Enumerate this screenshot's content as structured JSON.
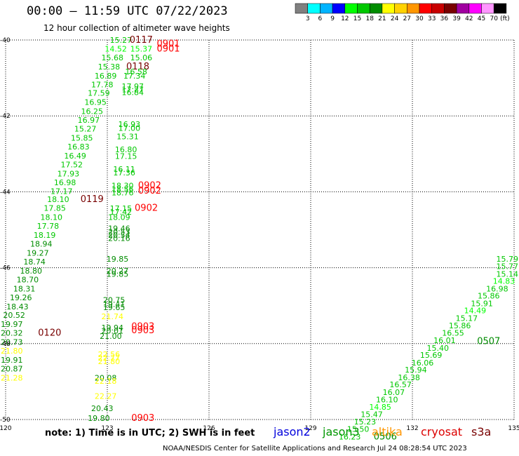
{
  "header": {
    "title": "00:00 – 11:59 UTC 07/22/2023",
    "subtitle": "12 hour collection of altimeter wave heights"
  },
  "colorbar": {
    "unit": "(ft)",
    "bins": [
      {
        "color": "#808080",
        "label": "3"
      },
      {
        "color": "#00ffff",
        "label": "6"
      },
      {
        "color": "#00b4ff",
        "label": "9"
      },
      {
        "color": "#0000ff",
        "label": "12"
      },
      {
        "color": "#00ff00",
        "label": "15"
      },
      {
        "color": "#00c800",
        "label": "18"
      },
      {
        "color": "#008c00",
        "label": "21"
      },
      {
        "color": "#ffff00",
        "label": "24"
      },
      {
        "color": "#ffd200",
        "label": "27"
      },
      {
        "color": "#ff9600",
        "label": "30"
      },
      {
        "color": "#ff0000",
        "label": "33"
      },
      {
        "color": "#c80000",
        "label": "36"
      },
      {
        "color": "#780000",
        "label": "39"
      },
      {
        "color": "#a000a0",
        "label": "42"
      },
      {
        "color": "#ff00ff",
        "label": "45"
      },
      {
        "color": "#ff96ff",
        "label": "70"
      },
      {
        "color": "#000000",
        "label": ""
      }
    ]
  },
  "axes": {
    "lon_ticks": [
      "120",
      "123",
      "126",
      "129",
      "132",
      "135"
    ],
    "lat_ticks": [
      "-40",
      "-42",
      "-44",
      "-46",
      "-48",
      "-50"
    ]
  },
  "note": "note: 1) Time is in UTC; 2) SWH is in feet",
  "legend": [
    {
      "name": "jason2",
      "color": "#0000dc"
    },
    {
      "name": "jason3",
      "color": "#009600"
    },
    {
      "name": "altika",
      "color": "#ff9600"
    },
    {
      "name": "cryosat",
      "color": "#dc0000"
    },
    {
      "name": "s3a",
      "color": "#780000"
    }
  ],
  "footer": "NOAA/NESDIS Center for Satellite Applications and Research    Jul 24 08:28:54 UTC 2023",
  "map": {
    "lon_range": [
      120,
      135
    ],
    "lat_range": [
      -50,
      -40
    ],
    "observations": [
      {
        "lon": 123.4,
        "lat": -40.0,
        "text": "15.27",
        "color": "#00c800"
      },
      {
        "lon": 124.0,
        "lat": -40.0,
        "text": "0117",
        "color": "#780000"
      },
      {
        "lon": 123.25,
        "lat": -40.23,
        "text": "14.52",
        "color": "#00ff00"
      },
      {
        "lon": 124.0,
        "lat": -40.23,
        "text": "15.37",
        "color": "#00ff00"
      },
      {
        "lon": 124.8,
        "lat": -40.1,
        "text": "0901",
        "color": "#ff0000"
      },
      {
        "lon": 124.8,
        "lat": -40.23,
        "text": "0901",
        "color": "#ff0000"
      },
      {
        "lon": 123.15,
        "lat": -40.46,
        "text": "15.68",
        "color": "#00c800"
      },
      {
        "lon": 124.0,
        "lat": -40.46,
        "text": "15.06",
        "color": "#00c800"
      },
      {
        "lon": 123.05,
        "lat": -40.7,
        "text": "15.38",
        "color": "#00c800"
      },
      {
        "lon": 123.9,
        "lat": -40.7,
        "text": "0118",
        "color": "#780000"
      },
      {
        "lon": 123.85,
        "lat": -40.83,
        "text": "16.58",
        "color": "#00c800"
      },
      {
        "lon": 122.95,
        "lat": -40.94,
        "text": "16.89",
        "color": "#00c800"
      },
      {
        "lon": 123.8,
        "lat": -40.94,
        "text": "17.34",
        "color": "#00c800"
      },
      {
        "lon": 122.85,
        "lat": -41.17,
        "text": "17.78",
        "color": "#00c800"
      },
      {
        "lon": 123.75,
        "lat": -41.22,
        "text": "17.97",
        "color": "#00c800"
      },
      {
        "lon": 123.75,
        "lat": -41.3,
        "text": "17.27",
        "color": "#00c800"
      },
      {
        "lon": 123.75,
        "lat": -41.38,
        "text": "16.84",
        "color": "#00c800"
      },
      {
        "lon": 122.75,
        "lat": -41.4,
        "text": "17.59",
        "color": "#00c800"
      },
      {
        "lon": 122.65,
        "lat": -41.64,
        "text": "16.95",
        "color": "#00c800"
      },
      {
        "lon": 122.55,
        "lat": -41.88,
        "text": "16.25",
        "color": "#00c800"
      },
      {
        "lon": 122.45,
        "lat": -42.11,
        "text": "16.97",
        "color": "#00c800"
      },
      {
        "lon": 123.65,
        "lat": -42.22,
        "text": "16.93",
        "color": "#00c800"
      },
      {
        "lon": 122.35,
        "lat": -42.34,
        "text": "15.27",
        "color": "#00c800"
      },
      {
        "lon": 123.65,
        "lat": -42.32,
        "text": "17.00",
        "color": "#00c800"
      },
      {
        "lon": 123.6,
        "lat": -42.54,
        "text": "15.31",
        "color": "#00c800"
      },
      {
        "lon": 122.25,
        "lat": -42.58,
        "text": "15.85",
        "color": "#00c800"
      },
      {
        "lon": 122.15,
        "lat": -42.81,
        "text": "16.83",
        "color": "#00c800"
      },
      {
        "lon": 123.55,
        "lat": -42.88,
        "text": "16.80",
        "color": "#00c800"
      },
      {
        "lon": 122.05,
        "lat": -43.05,
        "text": "16.49",
        "color": "#00c800"
      },
      {
        "lon": 123.55,
        "lat": -43.06,
        "text": "17.15",
        "color": "#00c800"
      },
      {
        "lon": 121.95,
        "lat": -43.28,
        "text": "17.52",
        "color": "#00c800"
      },
      {
        "lon": 123.5,
        "lat": -43.4,
        "text": "16.11",
        "color": "#00c800"
      },
      {
        "lon": 123.5,
        "lat": -43.49,
        "text": "17.36",
        "color": "#00c800"
      },
      {
        "lon": 121.85,
        "lat": -43.52,
        "text": "17.93",
        "color": "#00c800"
      },
      {
        "lon": 121.75,
        "lat": -43.75,
        "text": "16.98",
        "color": "#00c800"
      },
      {
        "lon": 123.45,
        "lat": -43.84,
        "text": "18.30",
        "color": "#00c800"
      },
      {
        "lon": 124.25,
        "lat": -43.84,
        "text": "0902",
        "color": "#ff0000"
      },
      {
        "lon": 123.45,
        "lat": -43.93,
        "text": "18.56",
        "color": "#00c800"
      },
      {
        "lon": 124.25,
        "lat": -43.97,
        "text": "0902",
        "color": "#ff0000"
      },
      {
        "lon": 121.65,
        "lat": -43.98,
        "text": "17.17",
        "color": "#00c800"
      },
      {
        "lon": 123.45,
        "lat": -44.02,
        "text": "18.76",
        "color": "#00c800"
      },
      {
        "lon": 121.55,
        "lat": -44.2,
        "text": "18.10",
        "color": "#00c800"
      },
      {
        "lon": 122.55,
        "lat": -44.2,
        "text": "0119",
        "color": "#780000"
      },
      {
        "lon": 121.45,
        "lat": -44.43,
        "text": "17.85",
        "color": "#00c800"
      },
      {
        "lon": 123.4,
        "lat": -44.44,
        "text": "17.15",
        "color": "#00c800"
      },
      {
        "lon": 124.15,
        "lat": -44.43,
        "text": "0902",
        "color": "#ff0000"
      },
      {
        "lon": 123.4,
        "lat": -44.53,
        "text": "17.42",
        "color": "#00c800"
      },
      {
        "lon": 121.35,
        "lat": -44.67,
        "text": "18.10",
        "color": "#00c800"
      },
      {
        "lon": 123.35,
        "lat": -44.67,
        "text": "18.09",
        "color": "#00c800"
      },
      {
        "lon": 121.25,
        "lat": -44.9,
        "text": "17.78",
        "color": "#00c800"
      },
      {
        "lon": 123.35,
        "lat": -44.96,
        "text": "19.46",
        "color": "#008c00"
      },
      {
        "lon": 123.35,
        "lat": -45.06,
        "text": "20.53",
        "color": "#008c00"
      },
      {
        "lon": 121.15,
        "lat": -45.14,
        "text": "18.19",
        "color": "#00c800"
      },
      {
        "lon": 123.35,
        "lat": -45.14,
        "text": "20.54",
        "color": "#008c00"
      },
      {
        "lon": 123.35,
        "lat": -45.22,
        "text": "20.16",
        "color": "#008c00"
      },
      {
        "lon": 121.05,
        "lat": -45.37,
        "text": "18.94",
        "color": "#008c00"
      },
      {
        "lon": 120.95,
        "lat": -45.61,
        "text": "19.27",
        "color": "#008c00"
      },
      {
        "lon": 123.3,
        "lat": -45.77,
        "text": "19.85",
        "color": "#008c00"
      },
      {
        "lon": 120.85,
        "lat": -45.84,
        "text": "18.74",
        "color": "#008c00"
      },
      {
        "lon": 123.3,
        "lat": -46.08,
        "text": "20.27",
        "color": "#008c00"
      },
      {
        "lon": 120.75,
        "lat": -46.08,
        "text": "18.80",
        "color": "#008c00"
      },
      {
        "lon": 123.3,
        "lat": -46.16,
        "text": "19.85",
        "color": "#008c00"
      },
      {
        "lon": 120.65,
        "lat": -46.31,
        "text": "18.70",
        "color": "#008c00"
      },
      {
        "lon": 120.55,
        "lat": -46.55,
        "text": "18.31",
        "color": "#008c00"
      },
      {
        "lon": 120.45,
        "lat": -46.78,
        "text": "19.26",
        "color": "#008c00"
      },
      {
        "lon": 123.2,
        "lat": -46.85,
        "text": "20.75",
        "color": "#008c00"
      },
      {
        "lon": 123.2,
        "lat": -46.96,
        "text": "19.41",
        "color": "#008c00"
      },
      {
        "lon": 123.2,
        "lat": -47.04,
        "text": "19.65",
        "color": "#008c00"
      },
      {
        "lon": 120.35,
        "lat": -47.02,
        "text": "18.43",
        "color": "#008c00"
      },
      {
        "lon": 123.15,
        "lat": -47.28,
        "text": "21.74",
        "color": "#ffff00"
      },
      {
        "lon": 120.25,
        "lat": -47.25,
        "text": "20.52",
        "color": "#008c00"
      },
      {
        "lon": 120.15,
        "lat": -47.49,
        "text": "19.97",
        "color": "#008c00"
      },
      {
        "lon": 123.15,
        "lat": -47.58,
        "text": "19.94",
        "color": "#008c00"
      },
      {
        "lon": 124.05,
        "lat": -47.55,
        "text": "0903",
        "color": "#ff0000"
      },
      {
        "lon": 123.15,
        "lat": -47.66,
        "text": "20.01",
        "color": "#008c00"
      },
      {
        "lon": 124.05,
        "lat": -47.65,
        "text": "0903",
        "color": "#ff0000"
      },
      {
        "lon": 120.05,
        "lat": -47.72,
        "text": "20.32",
        "color": "#008c00"
      },
      {
        "lon": 121.3,
        "lat": -47.72,
        "text": "0120",
        "color": "#780000"
      },
      {
        "lon": 123.1,
        "lat": -47.8,
        "text": "21.00",
        "color": "#008c00"
      },
      {
        "lon": 119.95,
        "lat": -47.96,
        "text": "20.73",
        "color": "#008c00"
      },
      {
        "lon": 119.85,
        "lat": -48.19,
        "text": "21.80",
        "color": "#ffff00"
      },
      {
        "lon": 123.05,
        "lat": -48.28,
        "text": "22.56",
        "color": "#ffff00"
      },
      {
        "lon": 123.05,
        "lat": -48.37,
        "text": "22.77",
        "color": "#ffff00"
      },
      {
        "lon": 119.75,
        "lat": -48.43,
        "text": "19.91",
        "color": "#008c00"
      },
      {
        "lon": 123.05,
        "lat": -48.47,
        "text": "21.80",
        "color": "#ffff00"
      },
      {
        "lon": 119.65,
        "lat": -48.66,
        "text": "20.87",
        "color": "#008c00"
      },
      {
        "lon": 119.55,
        "lat": -48.9,
        "text": "21.28",
        "color": "#ffff00"
      },
      {
        "lon": 122.95,
        "lat": -48.9,
        "text": "20.08",
        "color": "#008c00"
      },
      {
        "lon": 122.95,
        "lat": -48.98,
        "text": "22.18",
        "color": "#ffff00"
      },
      {
        "lon": 122.95,
        "lat": -49.38,
        "text": "22.27",
        "color": "#ffff00"
      },
      {
        "lon": 122.85,
        "lat": -49.7,
        "text": "20.43",
        "color": "#008c00"
      },
      {
        "lon": 122.75,
        "lat": -49.96,
        "text": "19.80",
        "color": "#008c00"
      },
      {
        "lon": 124.05,
        "lat": -49.96,
        "text": "0903",
        "color": "#ff0000"
      },
      {
        "lon": 135.0,
        "lat": -45.77,
        "text": "15.79",
        "color": "#00c800"
      },
      {
        "lon": 134.9,
        "lat": -45.96,
        "text": "15.77",
        "color": "#00c800"
      },
      {
        "lon": 134.8,
        "lat": -46.16,
        "text": "15.14",
        "color": "#00c800"
      },
      {
        "lon": 134.7,
        "lat": -46.35,
        "text": "14.83",
        "color": "#00ff00"
      },
      {
        "lon": 134.5,
        "lat": -46.55,
        "text": "16.98",
        "color": "#00c800"
      },
      {
        "lon": 134.25,
        "lat": -46.74,
        "text": "15.86",
        "color": "#00c800"
      },
      {
        "lon": 134.05,
        "lat": -46.94,
        "text": "15.91",
        "color": "#00c800"
      },
      {
        "lon": 133.85,
        "lat": -47.13,
        "text": "14.49",
        "color": "#00ff00"
      },
      {
        "lon": 133.6,
        "lat": -47.33,
        "text": "15.17",
        "color": "#00c800"
      },
      {
        "lon": 133.4,
        "lat": -47.52,
        "text": "15.86",
        "color": "#00c800"
      },
      {
        "lon": 133.2,
        "lat": -47.72,
        "text": "16.55",
        "color": "#00c800"
      },
      {
        "lon": 132.95,
        "lat": -47.91,
        "text": "16.01",
        "color": "#00c800"
      },
      {
        "lon": 134.25,
        "lat": -47.94,
        "text": "0507",
        "color": "#008c00"
      },
      {
        "lon": 132.75,
        "lat": -48.11,
        "text": "15.40",
        "color": "#00c800"
      },
      {
        "lon": 132.55,
        "lat": -48.3,
        "text": "15.69",
        "color": "#00c800"
      },
      {
        "lon": 132.3,
        "lat": -48.5,
        "text": "16.06",
        "color": "#00c800"
      },
      {
        "lon": 132.1,
        "lat": -48.69,
        "text": "15.94",
        "color": "#00c800"
      },
      {
        "lon": 131.9,
        "lat": -48.89,
        "text": "16.38",
        "color": "#00c800"
      },
      {
        "lon": 131.65,
        "lat": -49.08,
        "text": "16.57",
        "color": "#00c800"
      },
      {
        "lon": 131.45,
        "lat": -49.28,
        "text": "16.07",
        "color": "#00c800"
      },
      {
        "lon": 131.25,
        "lat": -49.47,
        "text": "16.10",
        "color": "#00c800"
      },
      {
        "lon": 131.05,
        "lat": -49.67,
        "text": "14.85",
        "color": "#00ff00"
      },
      {
        "lon": 130.8,
        "lat": -49.86,
        "text": "15.47",
        "color": "#00c800"
      },
      {
        "lon": 130.6,
        "lat": -50.06,
        "text": "15.23",
        "color": "#00c800"
      },
      {
        "lon": 130.4,
        "lat": -50.25,
        "text": "15.50",
        "color": "#00c800"
      },
      {
        "lon": 131.2,
        "lat": -50.45,
        "text": "0506",
        "color": "#008c00"
      },
      {
        "lon": 130.15,
        "lat": -50.45,
        "text": "16.23",
        "color": "#00c800"
      }
    ]
  }
}
